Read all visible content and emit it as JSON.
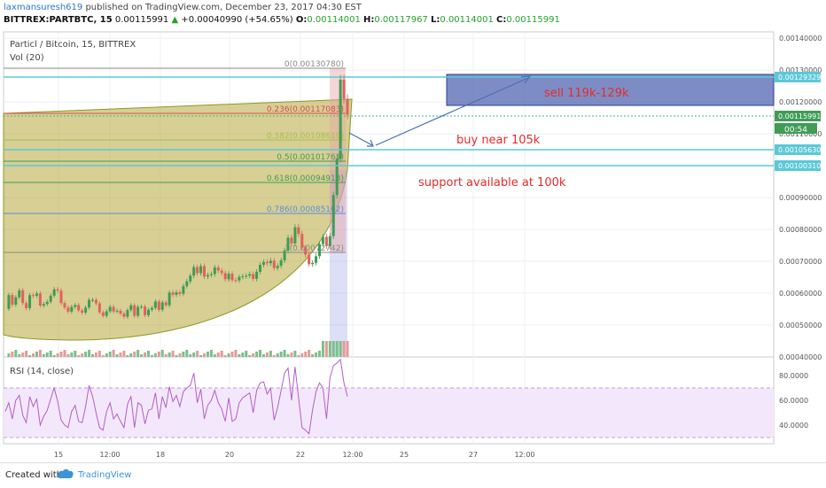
{
  "header": {
    "user": "laxmansuresh619",
    "published_text": "published on TradingView.com, December 23, 2017 04:30 EST",
    "symbol": "BITTREX:PARTBTC, 15",
    "last": "0.00115991",
    "arrow": "▲",
    "change": "+0.00040990 (+54.65%)",
    "open_label": "O:",
    "open": "0.00114001",
    "high_label": "H:",
    "high": "0.00117967",
    "low_label": "L:",
    "low": "0.00114001",
    "close_label": "C:",
    "close": "0.00115991"
  },
  "pane": {
    "title": "Particl / Bitcoin, 15, BITTREX",
    "volume_label": "Vol (20)",
    "rsi_label": "RSI (14, close)",
    "countdown": "00:54"
  },
  "footer": {
    "created_with": "Created with",
    "brand": "TradingView"
  },
  "colors": {
    "candle_up": "#3f9c55",
    "candle_down": "#e0625c",
    "fib_line": "#5bc8d8",
    "rsi_line": "#b35dc7",
    "rsi_band": "#f3e8fb",
    "sell_box": "#5266b2",
    "annotation_red": "#e52b2b",
    "arrow_blue": "#4a6fb5",
    "arc_fill": "#b6a83d"
  },
  "chart_data": [
    {
      "type": "line",
      "name": "price",
      "x_ticks": [
        "15",
        "12:00",
        "18",
        "20",
        "22",
        "12:00",
        "25",
        "27",
        "12:00"
      ],
      "y_ticks": [
        "0.00140000",
        "0.00130000",
        "0.00120000",
        "0.00110000",
        "0.00090000",
        "0.00080000",
        "0.00070000",
        "0.00060000",
        "0.00050000",
        "0.00040000"
      ],
      "y_price_labels": [
        "0.00129329",
        "0.00115991",
        "0.00105630",
        "0.00100310"
      ],
      "ylim": [
        0.0004,
        0.00142
      ],
      "x": [
        0,
        4,
        8,
        12,
        16,
        20,
        24,
        28,
        32,
        36,
        40,
        44,
        48,
        52,
        56,
        60,
        64,
        68,
        72,
        76,
        80,
        84,
        88,
        92,
        96,
        100,
        104,
        108,
        112,
        116,
        120,
        124,
        128,
        132,
        136,
        140,
        144,
        148,
        152,
        156,
        160,
        164,
        168,
        172,
        176,
        180,
        184,
        188,
        192,
        196,
        200,
        204,
        208,
        212,
        216,
        220,
        224,
        228,
        232,
        236,
        240,
        244,
        248,
        252,
        256,
        260,
        264,
        268,
        272,
        276,
        280,
        284,
        288,
        292,
        296,
        300,
        304,
        308,
        312,
        316,
        320,
        324,
        328,
        332,
        336,
        340,
        344,
        348,
        352,
        356,
        360,
        364,
        368,
        372,
        376,
        380,
        384,
        388,
        392
      ],
      "values": [
        0.000551,
        0.000594,
        0.000564,
        0.000587,
        0.000609,
        0.000569,
        0.000553,
        0.000594,
        0.000592,
        0.000599,
        0.000561,
        0.000566,
        0.000573,
        0.000592,
        0.000612,
        0.000608,
        0.000569,
        0.000555,
        0.000542,
        0.000557,
        0.000563,
        0.000546,
        0.000539,
        0.000555,
        0.000579,
        0.000579,
        0.000568,
        0.00054,
        0.000529,
        0.000543,
        0.000557,
        0.000543,
        0.000545,
        0.000536,
        0.000526,
        0.000547,
        0.000562,
        0.000529,
        0.000557,
        0.000558,
        0.000531,
        0.000548,
        0.000554,
        0.000574,
        0.000548,
        0.000571,
        0.000562,
        0.000602,
        0.000595,
        0.000603,
        0.000598,
        0.000622,
        0.000637,
        0.000655,
        0.000682,
        0.000663,
        0.000685,
        0.000652,
        0.000657,
        0.00066,
        0.000681,
        0.000671,
        0.000663,
        0.000644,
        0.000661,
        0.000641,
        0.00064,
        0.000651,
        0.000653,
        0.000655,
        0.00066,
        0.000645,
        0.000667,
        0.000689,
        0.000698,
        0.000694,
        0.000702,
        0.000679,
        0.000686,
        0.000703,
        0.000734,
        0.000774,
        0.000756,
        0.000807,
        0.000786,
        0.000743,
        0.000721,
        0.000691,
        0.000695,
        0.000716,
        0.000754,
        0.000777,
        0.000748,
        0.000779,
        0.000908,
        0.001022,
        0.00127,
        0.00121,
        0.00116
      ],
      "fib_levels": [
        {
          "label": "0(0.00130780)",
          "value": 0.0013078
        },
        {
          "label": "0.236(0.00117083)",
          "value": 0.00117083
        },
        {
          "label": "0.382(0.00108610)",
          "value": 0.0010861
        },
        {
          "label": "0.5(0.00101761)",
          "value": 0.00101761
        },
        {
          "label": "0.618(0.00094913)",
          "value": 0.00094913
        },
        {
          "label": "0.786(0.00085162)",
          "value": 0.00085162
        },
        {
          "label": "1(0.00072742)",
          "value": 0.00072742
        }
      ],
      "annotations": [
        "sell 119k-129k",
        "buy near 105k",
        "support available at 100k"
      ]
    },
    {
      "type": "line",
      "name": "RSI",
      "y_ticks": [
        "80.0000",
        "60.0000",
        "40.0000"
      ],
      "ylim": [
        25,
        95
      ],
      "bands": [
        30,
        70
      ],
      "x": [
        0,
        4,
        8,
        12,
        16,
        20,
        24,
        28,
        32,
        36,
        40,
        44,
        48,
        52,
        56,
        60,
        64,
        68,
        72,
        76,
        80,
        84,
        88,
        92,
        96,
        100,
        104,
        108,
        112,
        116,
        120,
        124,
        128,
        132,
        136,
        140,
        144,
        148,
        152,
        156,
        160,
        164,
        168,
        172,
        176,
        180,
        184,
        188,
        192,
        196,
        200,
        204,
        208,
        212,
        216,
        220,
        224,
        228,
        232,
        236,
        240,
        244,
        248,
        252,
        256,
        260,
        264,
        268,
        272,
        276,
        280,
        284,
        288,
        292,
        296,
        300,
        304,
        308,
        312,
        316,
        320,
        324,
        328,
        332,
        336,
        340,
        344,
        348,
        352,
        356,
        360,
        364,
        368,
        372,
        376,
        380,
        384,
        388,
        392
      ],
      "values": [
        51,
        58,
        45,
        60,
        64,
        48,
        42,
        63,
        55,
        61,
        40,
        47,
        52,
        61,
        70,
        59,
        44,
        40,
        38,
        51,
        56,
        43,
        42,
        55,
        72,
        63,
        50,
        38,
        36,
        51,
        58,
        45,
        49,
        43,
        38,
        57,
        63,
        38,
        58,
        56,
        41,
        52,
        53,
        66,
        45,
        63,
        54,
        71,
        59,
        64,
        55,
        67,
        70,
        72,
        82,
        58,
        69,
        45,
        56,
        60,
        68,
        58,
        53,
        43,
        62,
        43,
        45,
        58,
        62,
        64,
        66,
        50,
        68,
        74,
        75,
        65,
        70,
        44,
        54,
        68,
        82,
        86,
        60,
        87,
        62,
        38,
        36,
        33,
        52,
        67,
        74,
        70,
        45,
        78,
        88,
        90,
        93,
        74,
        63
      ]
    }
  ]
}
